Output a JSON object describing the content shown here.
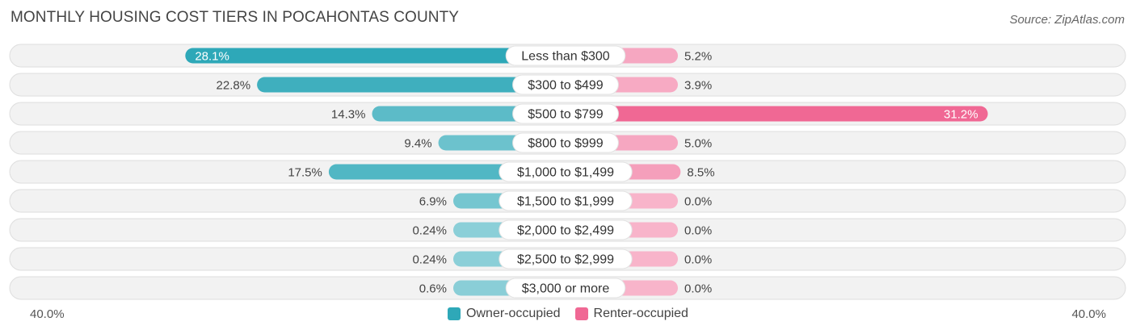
{
  "title": "MONTHLY HOUSING COST TIERS IN POCAHONTAS COUNTY",
  "source": "Source: ZipAtlas.com",
  "axis": {
    "left_label": "40.0%",
    "right_label": "40.0%"
  },
  "legend": {
    "owner": {
      "label": "Owner-occupied",
      "color": "#2ea8b8"
    },
    "renter": {
      "label": "Renter-occupied",
      "color": "#f06894"
    }
  },
  "chart_data": {
    "type": "bar",
    "orientation": "horizontal-diverging",
    "xlim": [
      -40,
      40
    ],
    "categories": [
      "Less than $300",
      "$300 to $499",
      "$500 to $799",
      "$800 to $999",
      "$1,000 to $1,499",
      "$1,500 to $1,999",
      "$2,000 to $2,499",
      "$2,500 to $2,999",
      "$3,000 or more"
    ],
    "series": [
      {
        "name": "Owner-occupied",
        "values": [
          28.1,
          22.8,
          14.3,
          9.4,
          17.5,
          6.9,
          0.24,
          0.24,
          0.6
        ],
        "labels": [
          "28.1%",
          "22.8%",
          "14.3%",
          "9.4%",
          "17.5%",
          "6.9%",
          "0.24%",
          "0.24%",
          "0.6%"
        ]
      },
      {
        "name": "Renter-occupied",
        "values": [
          5.2,
          3.9,
          31.2,
          5.0,
          8.5,
          0.0,
          0.0,
          0.0,
          0.0
        ],
        "labels": [
          "5.2%",
          "3.9%",
          "31.2%",
          "5.0%",
          "8.5%",
          "0.0%",
          "0.0%",
          "0.0%",
          "0.0%"
        ]
      }
    ]
  }
}
